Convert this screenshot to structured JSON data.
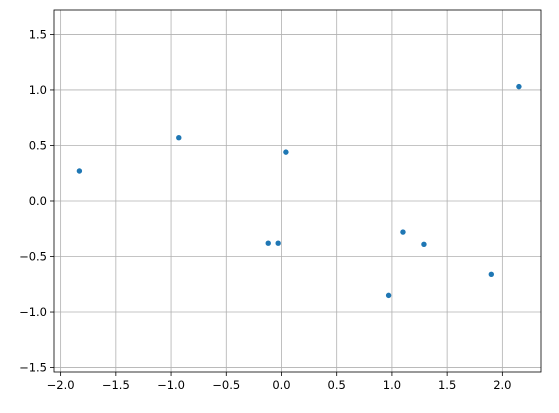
{
  "chart_data": {
    "type": "scatter",
    "title": "",
    "xlabel": "",
    "ylabel": "",
    "xlim": [
      -2.06,
      2.35
    ],
    "ylim": [
      -1.54,
      1.72
    ],
    "grid": true,
    "xticks": [
      -2.0,
      -1.5,
      -1.0,
      -0.5,
      0.0,
      0.5,
      1.0,
      1.5,
      2.0
    ],
    "xtick_labels": [
      "−2.0",
      "−1.5",
      "−1.0",
      "−0.5",
      "0.0",
      "0.5",
      "1.0",
      "1.5",
      "2.0"
    ],
    "yticks": [
      -1.5,
      -1.0,
      -0.5,
      0.0,
      0.5,
      1.0,
      1.5
    ],
    "ytick_labels": [
      "−1.5",
      "−1.0",
      "−0.5",
      "0.0",
      "0.5",
      "1.0",
      "1.5"
    ],
    "series": [
      {
        "color": "#1f77b4",
        "points": [
          {
            "x": -1.83,
            "y": 0.27
          },
          {
            "x": -0.93,
            "y": 0.57
          },
          {
            "x": -0.12,
            "y": -0.38
          },
          {
            "x": -0.03,
            "y": -0.38
          },
          {
            "x": 0.04,
            "y": 0.44
          },
          {
            "x": 0.97,
            "y": -0.85
          },
          {
            "x": 1.1,
            "y": -0.28
          },
          {
            "x": 1.29,
            "y": -0.39
          },
          {
            "x": 1.9,
            "y": -0.66
          },
          {
            "x": 2.15,
            "y": 1.03
          }
        ]
      }
    ]
  }
}
